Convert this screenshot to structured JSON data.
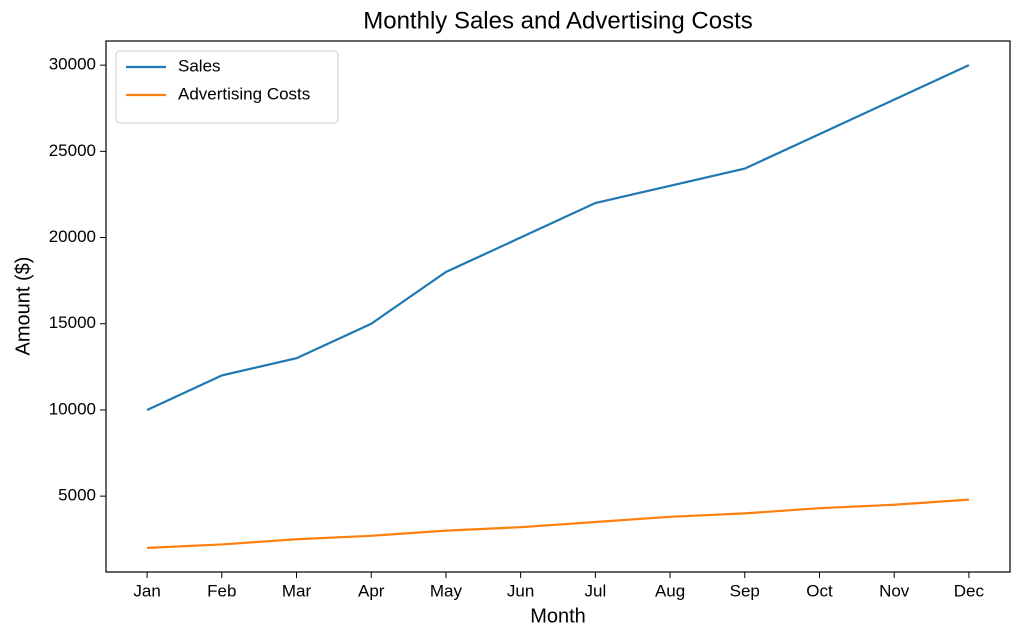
{
  "chart_data": {
    "type": "line",
    "title": "Monthly Sales and Advertising Costs",
    "x_label": "Month",
    "y_label": "Amount ($)",
    "categories": [
      "Jan",
      "Feb",
      "Mar",
      "Apr",
      "May",
      "Jun",
      "Jul",
      "Aug",
      "Sep",
      "Oct",
      "Nov",
      "Dec"
    ],
    "series": [
      {
        "name": "Sales",
        "color": "#1f77b4",
        "values": [
          10000,
          12000,
          13000,
          15000,
          18000,
          20000,
          22000,
          23000,
          24000,
          26000,
          28000,
          30000
        ]
      },
      {
        "name": "Advertising Costs",
        "color": "#ff7f0e",
        "values": [
          2000,
          2200,
          2500,
          2700,
          3000,
          3200,
          3500,
          3800,
          4000,
          4300,
          4500,
          4800
        ]
      }
    ],
    "ylim": [
      600,
      31400
    ],
    "yticks": [
      5000,
      10000,
      15000,
      20000,
      25000,
      30000
    ],
    "grid": false,
    "legend": "upper-left"
  }
}
